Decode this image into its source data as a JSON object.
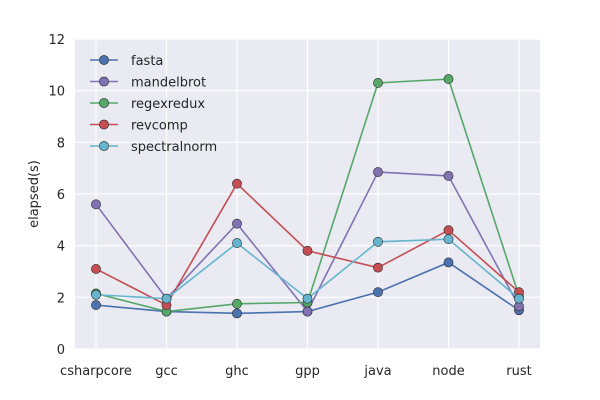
{
  "chart_data": {
    "type": "line",
    "categories": [
      "csharpcore",
      "gcc",
      "ghc",
      "gpp",
      "java",
      "node",
      "rust"
    ],
    "xlabel": "",
    "ylabel": "elapsed(s)",
    "ylim": [
      0,
      12
    ],
    "yticks": [
      0,
      2,
      4,
      6,
      8,
      10,
      12
    ],
    "grid": true,
    "legend_position": "top-left",
    "series": [
      {
        "name": "fasta",
        "color": "#4c72b0",
        "values": [
          1.7,
          1.45,
          1.38,
          1.45,
          2.2,
          3.35,
          1.5
        ]
      },
      {
        "name": "mandelbrot",
        "color": "#8172b2",
        "values": [
          5.6,
          1.95,
          4.85,
          1.45,
          6.85,
          6.7,
          1.65
        ]
      },
      {
        "name": "regexredux",
        "color": "#55a868",
        "values": [
          2.15,
          1.45,
          1.75,
          1.8,
          10.3,
          10.45,
          2.05
        ]
      },
      {
        "name": "revcomp",
        "color": "#c44e52",
        "values": [
          3.1,
          1.7,
          6.4,
          3.8,
          3.15,
          4.6,
          2.2
        ]
      },
      {
        "name": "spectralnorm",
        "color": "#64b5cd",
        "values": [
          2.1,
          1.95,
          4.1,
          1.95,
          4.15,
          4.25,
          1.95
        ]
      }
    ]
  }
}
